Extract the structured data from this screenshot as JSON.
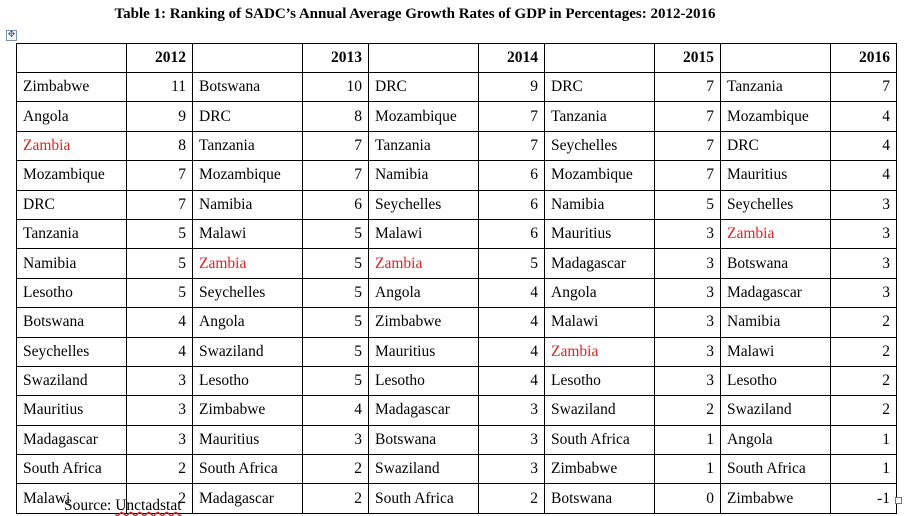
{
  "title": "Table 1: Ranking of SADC’s Annual Average Growth Rates of GDP in Percentages: 2012-2016",
  "source_prefix": "Source: ",
  "source_name": "Unctadstat",
  "highlight_color": "#e0231c",
  "highlight_country": "Zambia",
  "icons": {
    "table_move_handle": "move-arrows-icon",
    "table_resize_handle": "resize-square-icon"
  },
  "move_handle_glyph": "✥",
  "years": [
    "2012",
    "2013",
    "2014",
    "2015",
    "2016"
  ],
  "columns": [
    {
      "year": "2012",
      "rows": [
        {
          "country": "Zimbabwe",
          "value": "11"
        },
        {
          "country": "Angola",
          "value": "9"
        },
        {
          "country": "Zambia",
          "value": "8"
        },
        {
          "country": "Mozambique",
          "value": "7"
        },
        {
          "country": "DRC",
          "value": "7"
        },
        {
          "country": "Tanzania",
          "value": "5"
        },
        {
          "country": "Namibia",
          "value": "5"
        },
        {
          "country": "Lesotho",
          "value": "5"
        },
        {
          "country": "Botswana",
          "value": "4"
        },
        {
          "country": "Seychelles",
          "value": "4"
        },
        {
          "country": "Swaziland",
          "value": "3"
        },
        {
          "country": "Mauritius",
          "value": "3"
        },
        {
          "country": "Madagascar",
          "value": "3"
        },
        {
          "country": "South Africa",
          "value": "2"
        },
        {
          "country": "Malawi",
          "value": "2"
        }
      ]
    },
    {
      "year": "2013",
      "rows": [
        {
          "country": "Botswana",
          "value": "10"
        },
        {
          "country": "DRC",
          "value": "8"
        },
        {
          "country": "Tanzania",
          "value": "7"
        },
        {
          "country": "Mozambique",
          "value": "7"
        },
        {
          "country": "Namibia",
          "value": "6"
        },
        {
          "country": "Malawi",
          "value": "5"
        },
        {
          "country": "Zambia",
          "value": "5"
        },
        {
          "country": "Seychelles",
          "value": "5"
        },
        {
          "country": "Angola",
          "value": "5"
        },
        {
          "country": "Swaziland",
          "value": "5"
        },
        {
          "country": "Lesotho",
          "value": "5"
        },
        {
          "country": "Zimbabwe",
          "value": "4"
        },
        {
          "country": "Mauritius",
          "value": "3"
        },
        {
          "country": "South Africa",
          "value": "2"
        },
        {
          "country": "Madagascar",
          "value": "2"
        }
      ]
    },
    {
      "year": "2014",
      "rows": [
        {
          "country": "DRC",
          "value": "9"
        },
        {
          "country": "Mozambique",
          "value": "7"
        },
        {
          "country": "Tanzania",
          "value": "7"
        },
        {
          "country": "Namibia",
          "value": "6"
        },
        {
          "country": "Seychelles",
          "value": "6"
        },
        {
          "country": "Malawi",
          "value": "6"
        },
        {
          "country": "Zambia",
          "value": "5"
        },
        {
          "country": "Angola",
          "value": "4"
        },
        {
          "country": "Zimbabwe",
          "value": "4"
        },
        {
          "country": "Mauritius",
          "value": "4"
        },
        {
          "country": "Lesotho",
          "value": "4"
        },
        {
          "country": "Madagascar",
          "value": "3"
        },
        {
          "country": "Botswana",
          "value": "3"
        },
        {
          "country": "Swaziland",
          "value": "3"
        },
        {
          "country": "South Africa",
          "value": "2"
        }
      ]
    },
    {
      "year": "2015",
      "rows": [
        {
          "country": "DRC",
          "value": "7"
        },
        {
          "country": "Tanzania",
          "value": "7"
        },
        {
          "country": "Seychelles",
          "value": "7"
        },
        {
          "country": "Mozambique",
          "value": "7"
        },
        {
          "country": "Namibia",
          "value": "5"
        },
        {
          "country": "Mauritius",
          "value": "3"
        },
        {
          "country": "Madagascar",
          "value": "3"
        },
        {
          "country": "Angola",
          "value": "3"
        },
        {
          "country": "Malawi",
          "value": "3"
        },
        {
          "country": "Zambia",
          "value": "3"
        },
        {
          "country": "Lesotho",
          "value": "3"
        },
        {
          "country": "Swaziland",
          "value": "2"
        },
        {
          "country": "South Africa",
          "value": "1"
        },
        {
          "country": "Zimbabwe",
          "value": "1"
        },
        {
          "country": "Botswana",
          "value": "0"
        }
      ]
    },
    {
      "year": "2016",
      "rows": [
        {
          "country": "Tanzania",
          "value": "7"
        },
        {
          "country": "Mozambique",
          "value": "4"
        },
        {
          "country": "DRC",
          "value": "4"
        },
        {
          "country": "Mauritius",
          "value": "4"
        },
        {
          "country": "Seychelles",
          "value": "3"
        },
        {
          "country": "Zambia",
          "value": "3"
        },
        {
          "country": "Botswana",
          "value": "3"
        },
        {
          "country": "Madagascar",
          "value": "3"
        },
        {
          "country": "Namibia",
          "value": "2"
        },
        {
          "country": "Malawi",
          "value": "2"
        },
        {
          "country": "Lesotho",
          "value": "2"
        },
        {
          "country": "Swaziland",
          "value": "2"
        },
        {
          "country": "Angola",
          "value": "1"
        },
        {
          "country": "South Africa",
          "value": "1"
        },
        {
          "country": "Zimbabwe",
          "value": "-1"
        }
      ]
    }
  ]
}
